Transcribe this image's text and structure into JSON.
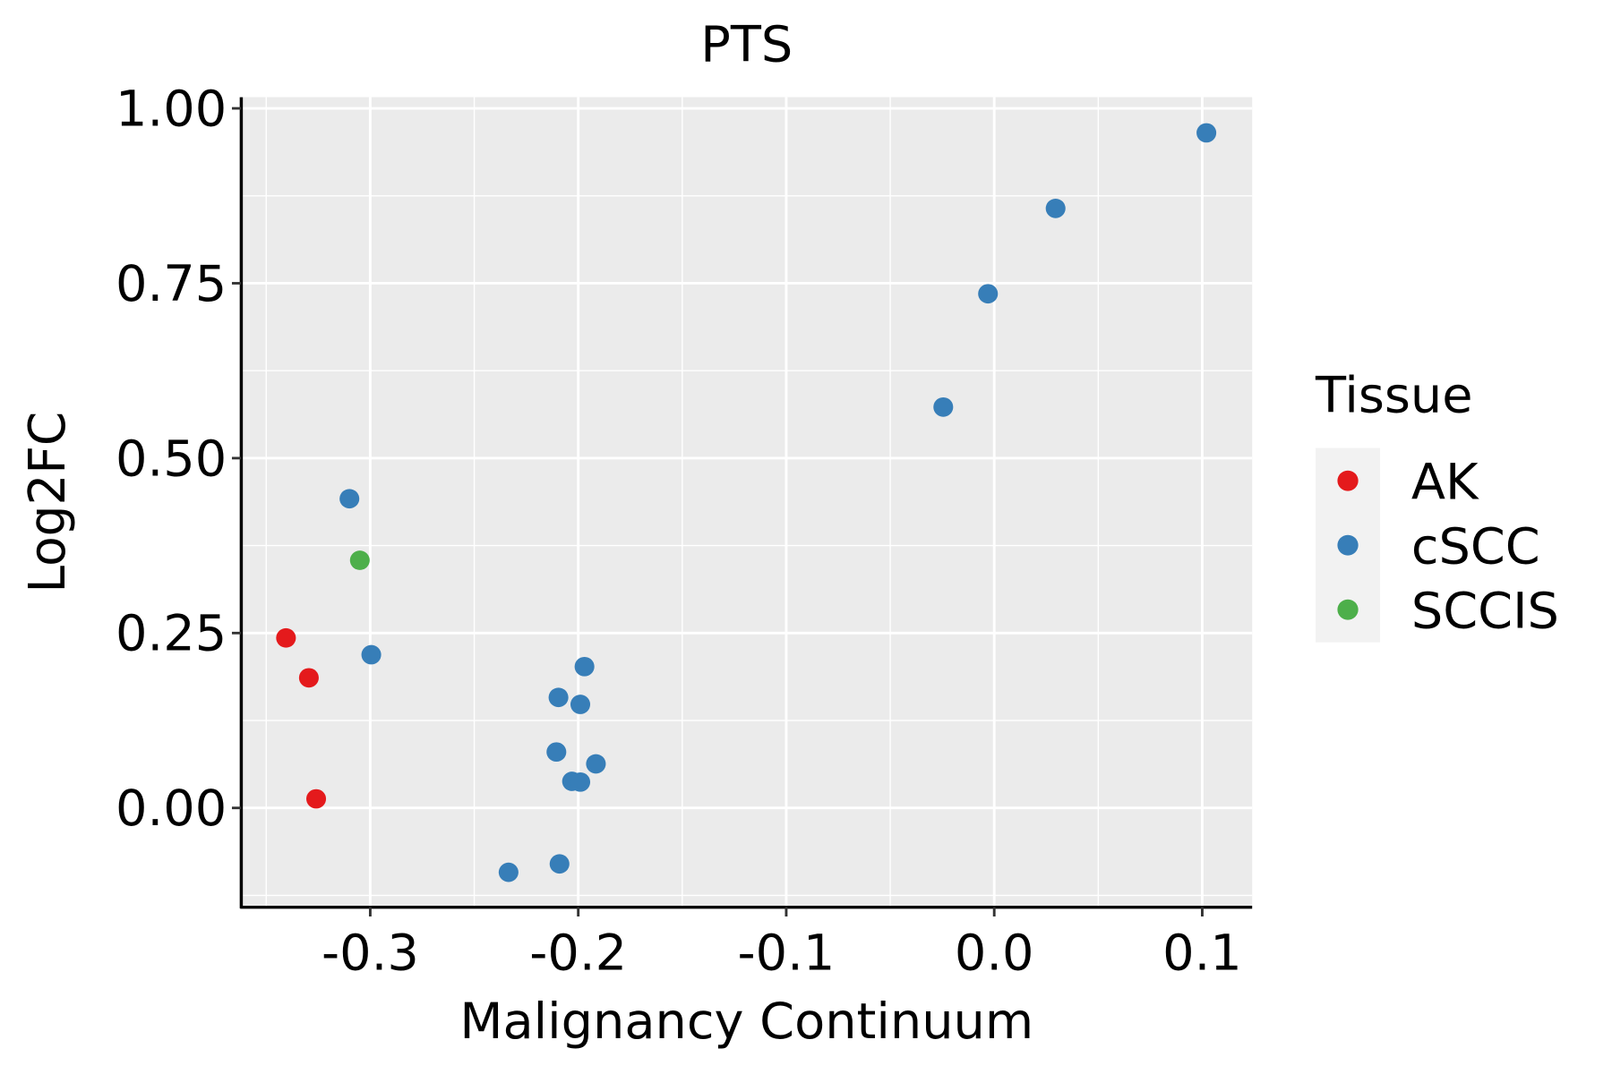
{
  "chart_data": {
    "type": "scatter",
    "title": "PTS",
    "xlabel": "Malignancy Continuum",
    "ylabel": "Log2FC",
    "xlim": [
      -0.362,
      0.124
    ],
    "ylim": [
      -0.142,
      1.016
    ],
    "xticks": [
      -0.3,
      -0.2,
      -0.1,
      0.0,
      0.1
    ],
    "xtick_labels": [
      "-0.3",
      "-0.2",
      "-0.1",
      "0.0",
      "0.1"
    ],
    "yticks": [
      0,
      0.25,
      0.5,
      0.75,
      1.0
    ],
    "ytick_labels": [
      "0.00",
      "0.25",
      "0.50",
      "0.75",
      "1.00"
    ],
    "grid": true,
    "legend": {
      "title": "Tissue",
      "placement": "right",
      "entries": [
        {
          "label": "AK",
          "color": "#E41A1C"
        },
        {
          "label": "cSCC",
          "color": "#377EB8"
        },
        {
          "label": "SCCIS",
          "color": "#4DAF4A"
        }
      ]
    },
    "series": [
      {
        "name": "AK",
        "color": "#E41A1C",
        "points": [
          [
            -0.3405,
            0.243
          ],
          [
            -0.3295,
            0.186
          ],
          [
            -0.326,
            0.013
          ]
        ]
      },
      {
        "name": "SCCIS",
        "color": "#4DAF4A",
        "points": [
          [
            -0.305,
            0.354
          ]
        ]
      },
      {
        "name": "cSCC",
        "color": "#377EB8",
        "points": [
          [
            -0.31,
            0.442
          ],
          [
            -0.2995,
            0.219
          ],
          [
            -0.197,
            0.202
          ],
          [
            -0.2095,
            0.158
          ],
          [
            -0.199,
            0.148
          ],
          [
            -0.2105,
            0.08
          ],
          [
            -0.1915,
            0.063
          ],
          [
            -0.203,
            0.038
          ],
          [
            -0.199,
            0.037
          ],
          [
            -0.2335,
            -0.092
          ],
          [
            -0.209,
            -0.08
          ],
          [
            -0.0245,
            0.573
          ],
          [
            -0.003,
            0.735
          ],
          [
            0.0295,
            0.857
          ],
          [
            0.102,
            0.965
          ]
        ]
      }
    ]
  }
}
